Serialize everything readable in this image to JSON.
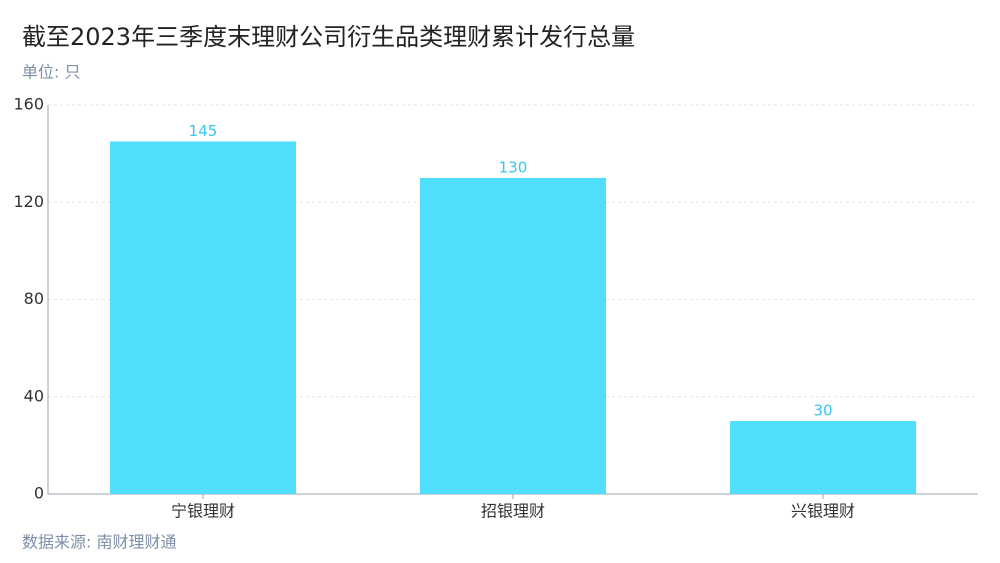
{
  "chart_data": {
    "type": "bar",
    "title": "截至2023年三季度末理财公司衍生品类理财累计发行总量",
    "subtitle": "单位: 只",
    "source": "数据来源: 南财理财通",
    "categories": [
      "宁银理财",
      "招银理财",
      "兴银理财"
    ],
    "values": [
      145,
      130,
      30
    ],
    "color": "#4fdffc",
    "label_color": "#33c6ee",
    "ylim": [
      0,
      160
    ],
    "yticks": [
      0,
      40,
      80,
      120,
      160
    ],
    "grid": true
  }
}
